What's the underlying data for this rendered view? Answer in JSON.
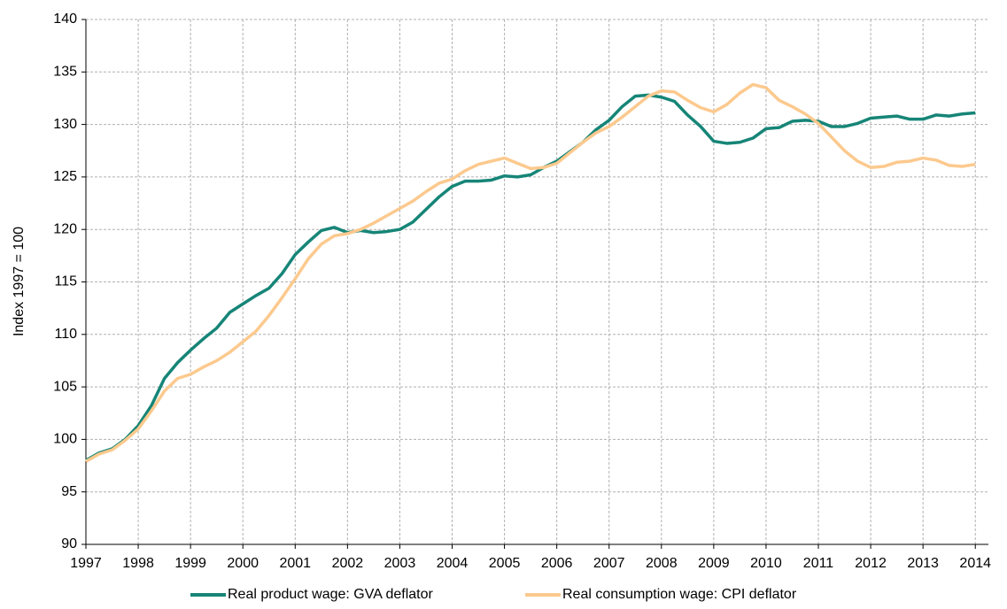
{
  "chart_data": {
    "type": "line",
    "y_label": "Index 1997 = 100",
    "x": [
      1997,
      1997.25,
      1997.5,
      1997.75,
      1998,
      1998.25,
      1998.5,
      1998.75,
      1999,
      1999.25,
      1999.5,
      1999.75,
      2000,
      2000.25,
      2000.5,
      2000.75,
      2001,
      2001.25,
      2001.5,
      2001.75,
      2002,
      2002.25,
      2002.5,
      2002.75,
      2003,
      2003.25,
      2003.5,
      2003.75,
      2004,
      2004.25,
      2004.5,
      2004.75,
      2005,
      2005.25,
      2005.5,
      2005.75,
      2006,
      2006.25,
      2006.5,
      2006.75,
      2007,
      2007.25,
      2007.5,
      2007.75,
      2008,
      2008.25,
      2008.5,
      2008.75,
      2009,
      2009.25,
      2009.5,
      2009.75,
      2010,
      2010.25,
      2010.5,
      2010.75,
      2011,
      2011.25,
      2011.5,
      2011.75,
      2012,
      2012.25,
      2012.5,
      2012.75,
      2013,
      2013.25,
      2013.5,
      2013.75,
      2014
    ],
    "series": [
      {
        "name": "Real product wage: GVA deflator",
        "color": "#168577",
        "values": [
          98,
          98.7,
          99.1,
          100,
          101.3,
          103.2,
          105.8,
          107.3,
          108.5,
          109.6,
          110.6,
          112.1,
          112.9,
          113.7,
          114.4,
          115.8,
          117.6,
          118.8,
          119.9,
          120.2,
          119.7,
          119.9,
          119.7,
          119.8,
          120,
          120.7,
          121.9,
          123.1,
          124.1,
          124.6,
          124.6,
          124.7,
          125.1,
          125,
          125.2,
          125.9,
          126.5,
          127.4,
          128.3,
          129.5,
          130.4,
          131.7,
          132.7,
          132.8,
          132.6,
          132.2,
          130.9,
          129.8,
          128.4,
          128.2,
          128.3,
          128.7,
          129.6,
          129.7,
          130.3,
          130.4,
          130.3,
          129.8,
          129.8,
          130.1,
          130.6,
          130.7,
          130.8,
          130.5,
          130.5,
          130.9,
          130.8,
          131,
          131.1
        ]
      },
      {
        "name": "Real consumption wage: CPI deflator",
        "color": "#fcc98e",
        "values": [
          97.9,
          98.6,
          99,
          99.9,
          101,
          102.7,
          104.6,
          105.8,
          106.2,
          106.9,
          107.5,
          108.3,
          109.3,
          110.3,
          111.8,
          113.5,
          115.3,
          117.2,
          118.6,
          119.4,
          119.6,
          120,
          120.6,
          121.3,
          122,
          122.7,
          123.6,
          124.4,
          124.8,
          125.6,
          126.2,
          126.5,
          126.8,
          126.3,
          125.8,
          125.9,
          126.3,
          127.3,
          128.3,
          129.2,
          129.8,
          130.7,
          131.7,
          132.7,
          133.2,
          133.1,
          132.3,
          131.6,
          131.2,
          131.9,
          133,
          133.8,
          133.5,
          132.3,
          131.7,
          131,
          130.1,
          128.8,
          127.5,
          126.5,
          125.9,
          126,
          126.4,
          126.5,
          126.8,
          126.6,
          126.1,
          126,
          126.2
        ]
      }
    ],
    "xlim": [
      1997,
      2014.25
    ],
    "xticks": [
      1997,
      1998,
      1999,
      2000,
      2001,
      2002,
      2003,
      2004,
      2005,
      2006,
      2007,
      2008,
      2009,
      2010,
      2011,
      2012,
      2013,
      2014
    ],
    "ylim": [
      90,
      140
    ],
    "yticks": [
      90,
      95,
      100,
      105,
      110,
      115,
      120,
      125,
      130,
      135,
      140
    ],
    "grid": true,
    "legend": "bottom"
  }
}
